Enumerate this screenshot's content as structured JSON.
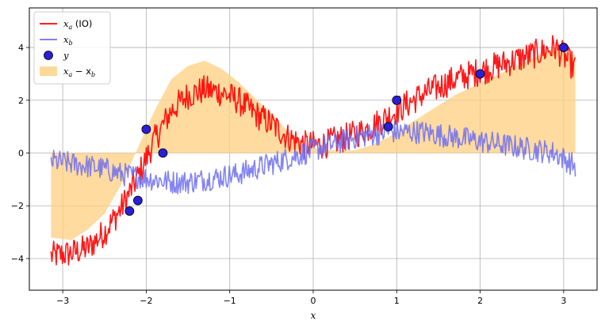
{
  "chart_data": {
    "type": "line",
    "xlabel": "x",
    "ylabel": "",
    "xlim": [
      -3.4,
      3.4
    ],
    "ylim": [
      -5.2,
      5.5
    ],
    "x_ticks": [
      -3,
      -2,
      -1,
      0,
      1,
      2,
      3
    ],
    "y_ticks": [
      -4,
      -2,
      0,
      2,
      4
    ],
    "x_tick_labels": [
      "−3",
      "−2",
      "−1",
      "0",
      "1",
      "2",
      "3"
    ],
    "y_tick_labels": [
      "−4",
      "−2",
      "0",
      "2",
      "4"
    ],
    "grid": true,
    "legend_position": "top-left",
    "series": [
      {
        "name": "x_a (IO)",
        "kind": "line",
        "color": "#ff0000",
        "x": [
          -3.14,
          -2.9,
          -2.7,
          -2.5,
          -2.3,
          -2.1,
          -1.9,
          -1.7,
          -1.5,
          -1.3,
          -1.1,
          -0.9,
          -0.7,
          -0.5,
          -0.3,
          -0.1,
          0.1,
          0.3,
          0.5,
          0.7,
          0.9,
          1.1,
          1.3,
          1.5,
          1.7,
          1.9,
          2.1,
          2.3,
          2.5,
          2.7,
          2.9,
          3.14
        ],
        "y": [
          -3.9,
          -3.8,
          -3.6,
          -3.0,
          -2.1,
          -0.9,
          0.5,
          1.6,
          2.2,
          2.4,
          2.3,
          2.0,
          1.5,
          1.1,
          0.6,
          0.3,
          0.3,
          0.5,
          0.7,
          1.0,
          1.4,
          1.8,
          2.2,
          2.5,
          2.8,
          3.0,
          3.2,
          3.4,
          3.6,
          3.8,
          4.0,
          3.2
        ]
      },
      {
        "name": "x_b",
        "kind": "line",
        "color": "#6f6ff0",
        "x": [
          -3.14,
          -2.9,
          -2.7,
          -2.5,
          -2.3,
          -2.1,
          -1.9,
          -1.7,
          -1.5,
          -1.3,
          -1.1,
          -0.9,
          -0.7,
          -0.5,
          -0.3,
          -0.1,
          0.1,
          0.3,
          0.5,
          0.7,
          0.9,
          1.1,
          1.3,
          1.5,
          1.7,
          1.9,
          2.1,
          2.3,
          2.5,
          2.7,
          2.9,
          3.14
        ],
        "y": [
          -0.3,
          -0.4,
          -0.5,
          -0.6,
          -0.8,
          -0.9,
          -1.0,
          -1.1,
          -1.1,
          -1.0,
          -0.9,
          -0.8,
          -0.6,
          -0.4,
          -0.2,
          0.0,
          0.2,
          0.4,
          0.6,
          0.7,
          0.8,
          0.8,
          0.8,
          0.7,
          0.6,
          0.5,
          0.4,
          0.3,
          0.2,
          0.1,
          0.0,
          -0.5
        ]
      },
      {
        "name": "y",
        "kind": "scatter",
        "color": "#2a1fd6",
        "x": [
          -2.2,
          -2.1,
          -2.0,
          -1.8,
          0.9,
          1.0,
          2.0,
          3.0
        ],
        "y": [
          -2.2,
          -1.8,
          0.9,
          0.0,
          1.0,
          2.0,
          3.0,
          4.0
        ]
      },
      {
        "name": "x_a − x_b",
        "kind": "area",
        "color": "#ffcf80",
        "x": [
          -3.14,
          -2.9,
          -2.7,
          -2.5,
          -2.3,
          -2.1,
          -1.9,
          -1.7,
          -1.5,
          -1.3,
          -1.1,
          -0.9,
          -0.7,
          -0.5,
          -0.3,
          -0.1,
          0.1,
          0.3,
          0.5,
          0.7,
          0.9,
          1.1,
          1.3,
          1.5,
          1.7,
          1.9,
          2.1,
          2.3,
          2.5,
          2.7,
          2.9,
          3.14
        ],
        "y": [
          -3.2,
          -3.3,
          -2.9,
          -2.3,
          -1.2,
          0.2,
          1.6,
          2.8,
          3.3,
          3.5,
          3.2,
          2.7,
          2.1,
          1.5,
          0.8,
          0.3,
          0.1,
          0.1,
          0.1,
          0.3,
          0.6,
          1.0,
          1.4,
          1.8,
          2.2,
          2.5,
          2.8,
          3.1,
          3.4,
          3.7,
          4.0,
          3.7
        ]
      }
    ],
    "legend": [
      {
        "base": "x",
        "sub": "a",
        "suffix": " (IO)"
      },
      {
        "base": "x",
        "sub": "b",
        "suffix": ""
      },
      {
        "base": "y",
        "sub": "",
        "suffix": ""
      },
      {
        "base": "x",
        "sub": "a",
        "suffix": " − x",
        "sub2": "b"
      }
    ]
  }
}
